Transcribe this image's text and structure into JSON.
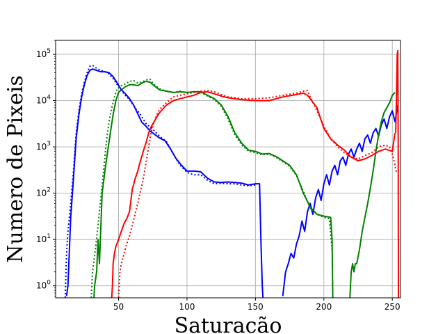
{
  "chart_data": {
    "type": "line",
    "title": "",
    "xlabel": "Saturacão",
    "ylabel": "Numero de Pixeis",
    "xlim": [
      4,
      256
    ],
    "ylim": [
      0.55,
      200000
    ],
    "yscale": "log",
    "grid": true,
    "x_ticks": [
      50,
      100,
      150,
      200,
      250
    ],
    "y_ticks": [
      {
        "value": 1,
        "base": "10",
        "exp": "0"
      },
      {
        "value": 10,
        "base": "10",
        "exp": "1"
      },
      {
        "value": 100,
        "base": "10",
        "exp": "2"
      },
      {
        "value": 1000,
        "base": "10",
        "exp": "3"
      },
      {
        "value": 10000,
        "base": "10",
        "exp": "4"
      },
      {
        "value": 100000,
        "base": "10",
        "exp": "5"
      }
    ],
    "series": [
      {
        "color": "#0000ff",
        "style": "solid",
        "x": [
          12,
          13,
          15,
          17,
          19,
          21,
          23,
          25,
          27,
          29,
          31,
          33,
          35,
          37,
          40,
          43,
          46,
          49,
          52,
          55,
          58,
          61,
          64,
          67,
          70,
          73,
          76,
          80,
          84,
          88,
          92,
          96,
          100,
          105,
          110,
          115,
          120,
          125,
          130,
          135,
          140,
          145,
          150,
          153,
          154,
          155,
          155.5
        ],
        "y": [
          0.6,
          1,
          30,
          200,
          1500,
          5000,
          12000,
          22000,
          35000,
          45000,
          48000,
          46000,
          44000,
          42000,
          42000,
          40000,
          33000,
          24000,
          17000,
          14000,
          11000,
          8000,
          5200,
          3400,
          2800,
          2200,
          1900,
          1550,
          1350,
          900,
          560,
          400,
          300,
          300,
          290,
          210,
          175,
          170,
          175,
          170,
          165,
          150,
          160,
          160,
          10,
          1,
          0.55
        ]
      },
      {
        "color": "#0000ff",
        "style": "solid",
        "x": [
          170,
          172,
          174,
          176,
          178,
          180,
          182,
          184,
          186,
          188,
          190,
          192,
          194,
          196,
          198,
          200,
          202,
          204,
          206,
          208,
          210,
          212,
          214,
          216,
          218,
          220,
          222,
          224,
          226,
          228,
          230,
          232,
          234,
          236,
          238,
          240,
          242,
          244,
          246,
          248,
          250,
          252,
          254
        ],
        "y": [
          0.6,
          2,
          3,
          5,
          4,
          8,
          12,
          25,
          15,
          40,
          60,
          35,
          80,
          120,
          70,
          160,
          250,
          150,
          300,
          400,
          250,
          500,
          600,
          400,
          700,
          900,
          600,
          900,
          1200,
          800,
          1500,
          1800,
          1200,
          2000,
          2500,
          1700,
          3000,
          4000,
          2500,
          4500,
          6000,
          3500,
          8000
        ]
      },
      {
        "color": "#008000",
        "style": "solid",
        "x": [
          32,
          32.5,
          34,
          35,
          36,
          38,
          40,
          42,
          44,
          46,
          48,
          50,
          52,
          55,
          58,
          61,
          64,
          67,
          70,
          73,
          76,
          80,
          85,
          90,
          95,
          100,
          105,
          110,
          115,
          120,
          125,
          130,
          135,
          140,
          145,
          150,
          155,
          160,
          165,
          170,
          175,
          180,
          185,
          190,
          195,
          200,
          205,
          206,
          206.5
        ],
        "y": [
          0.55,
          1,
          2,
          10,
          3,
          100,
          300,
          800,
          2000,
          5000,
          10000,
          15000,
          17000,
          20000,
          22000,
          22000,
          21000,
          24000,
          26000,
          25000,
          21000,
          17000,
          16000,
          15000,
          15500,
          15000,
          15500,
          15500,
          13000,
          11000,
          8000,
          4500,
          2000,
          1200,
          850,
          800,
          700,
          720,
          620,
          500,
          400,
          250,
          100,
          50,
          35,
          32,
          30,
          10,
          0.55
        ]
      },
      {
        "color": "#008000",
        "style": "solid",
        "x": [
          219,
          220,
          221,
          222,
          223,
          224,
          226,
          228,
          230,
          232,
          234,
          236,
          238,
          240,
          242,
          244,
          246,
          248,
          250,
          252
        ],
        "y": [
          0.55,
          2,
          3,
          2,
          3,
          3,
          6,
          15,
          30,
          60,
          130,
          300,
          800,
          1800,
          3500,
          5500,
          7000,
          9000,
          13000,
          15000
        ]
      },
      {
        "color": "#ff0000",
        "style": "solid",
        "x": [
          45,
          45.5,
          46,
          47,
          48,
          50,
          52,
          54,
          56,
          58,
          60,
          62,
          64,
          66,
          68,
          70,
          72,
          74,
          76,
          78,
          80,
          85,
          90,
          95,
          100,
          105,
          110,
          115,
          120,
          125,
          130,
          140,
          150,
          160,
          170,
          180,
          185,
          188,
          190,
          195,
          200,
          205,
          210,
          215,
          220,
          225,
          230,
          235,
          240,
          245,
          250,
          252
        ],
        "y": [
          0.55,
          1,
          3,
          5,
          7,
          10,
          15,
          22,
          28,
          40,
          120,
          200,
          300,
          500,
          800,
          1200,
          2000,
          2800,
          3500,
          4500,
          5500,
          8000,
          10000,
          11000,
          12000,
          13000,
          15000,
          15500,
          14000,
          12500,
          11500,
          10500,
          10000,
          10000,
          12000,
          13500,
          14500,
          13000,
          11000,
          7000,
          2500,
          1500,
          1100,
          850,
          600,
          500,
          550,
          650,
          800,
          900,
          800,
          2000
        ]
      },
      {
        "color": "#ff0000",
        "style": "solid",
        "x": [
          252.5,
          253,
          253.3,
          253.6,
          254,
          254.3,
          254.5
        ],
        "y": [
          2000,
          10000,
          30000,
          100000,
          120000,
          1000,
          0.55
        ]
      },
      {
        "color": "#0000ff",
        "style": "dotted",
        "x": [
          11,
          12,
          13,
          15,
          17,
          19,
          21,
          23,
          25,
          27,
          29,
          31,
          33,
          35,
          38,
          42,
          46,
          50,
          54,
          58,
          62,
          66,
          70,
          75,
          80,
          85,
          90,
          95,
          100,
          105,
          110,
          115,
          120,
          125,
          130,
          135,
          140,
          145,
          150
        ],
        "y": [
          0.55,
          5,
          15,
          60,
          300,
          2000,
          6000,
          14000,
          25000,
          40000,
          55000,
          58000,
          52000,
          48000,
          44000,
          40000,
          30000,
          20000,
          14000,
          10500,
          7000,
          5000,
          3200,
          2400,
          1700,
          1300,
          700,
          400,
          280,
          250,
          250,
          190,
          160,
          165,
          160,
          160,
          150,
          145,
          150
        ]
      },
      {
        "color": "#008000",
        "style": "dotted",
        "x": [
          30,
          31,
          33,
          35,
          37,
          39,
          41,
          43,
          45,
          47,
          49,
          52,
          55,
          58,
          61,
          64,
          67,
          70,
          73,
          76,
          80,
          85,
          90,
          95,
          100,
          105,
          110,
          115,
          120,
          125,
          130,
          135,
          140,
          145,
          150,
          155,
          160,
          165,
          170,
          175,
          180,
          185,
          190,
          195,
          200,
          204,
          206
        ],
        "y": [
          0.55,
          2,
          6,
          20,
          80,
          300,
          1200,
          3500,
          7000,
          12000,
          18000,
          21000,
          23000,
          26000,
          27000,
          24000,
          25000,
          28000,
          29000,
          22000,
          18000,
          16000,
          15000,
          16000,
          15000,
          15500,
          15000,
          12500,
          10500,
          7500,
          4000,
          1800,
          1100,
          800,
          750,
          680,
          700,
          600,
          480,
          380,
          240,
          110,
          48,
          35,
          30,
          28,
          6
        ]
      },
      {
        "color": "#ff0000",
        "style": "dotted",
        "x": [
          50,
          51,
          52,
          54,
          56,
          58,
          60,
          62,
          64,
          66,
          68,
          70,
          72,
          74,
          76,
          78,
          80,
          85,
          90,
          95,
          100,
          105,
          110,
          115,
          120,
          125,
          130,
          140,
          150,
          160,
          170,
          180,
          185,
          188,
          190,
          195,
          200,
          205,
          210,
          215,
          220,
          225,
          230,
          235,
          240,
          245,
          248,
          250,
          252,
          253
        ],
        "y": [
          0.55,
          2,
          3,
          5,
          8,
          12,
          20,
          35,
          60,
          110,
          200,
          450,
          1000,
          2200,
          3500,
          5000,
          6500,
          9000,
          12000,
          13000,
          14000,
          15000,
          16000,
          16500,
          15500,
          13500,
          12000,
          11000,
          11000,
          11500,
          13000,
          14500,
          16000,
          16500,
          12000,
          6000,
          2800,
          1500,
          1000,
          750,
          600,
          550,
          650,
          750,
          1000,
          1100,
          1000,
          700,
          400,
          280
        ]
      }
    ]
  }
}
